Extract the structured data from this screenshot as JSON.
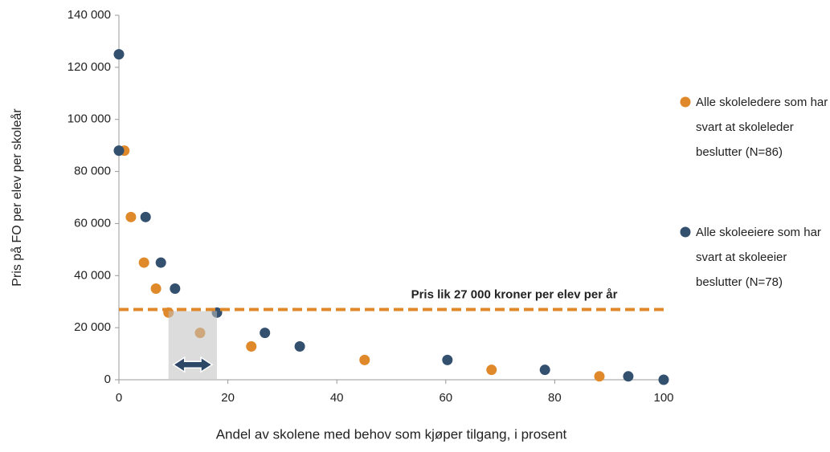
{
  "chart_data": {
    "type": "scatter",
    "y_label": "Pris på FO per elev per skoleår",
    "x_label": "Andel av skolene med behov som kjøper tilgang, i prosent",
    "xlim": [
      0,
      100
    ],
    "xticks": [
      0,
      20,
      40,
      60,
      80,
      100
    ],
    "ylim": [
      0,
      140000
    ],
    "yticks": [
      {
        "value": 0,
        "label": "0"
      },
      {
        "value": 20000,
        "label": "20 000"
      },
      {
        "value": 40000,
        "label": "40 000"
      },
      {
        "value": 60000,
        "label": "60 000"
      },
      {
        "value": 80000,
        "label": "80 000"
      },
      {
        "value": 100000,
        "label": "100 000"
      },
      {
        "value": 120000,
        "label": "120 000"
      },
      {
        "value": 140000,
        "label": "140 000"
      }
    ],
    "grid": false,
    "legend_position": "right",
    "reference_line": {
      "value": 27000,
      "label": "Pris lik 27 000 kroner per elev per år",
      "color": "#e0892a"
    },
    "series": [
      {
        "name": "Alle skoleledere som har svart at skoleleder beslutter (N=86)",
        "color": "#e0892a",
        "x": [
          1,
          2.2,
          4.6,
          6.8,
          9.1,
          14.9,
          24.3,
          45.1,
          68.4,
          88.2
        ],
        "values": [
          88000,
          62500,
          45000,
          35000,
          25800,
          18000,
          12800,
          7600,
          3800,
          1300
        ]
      },
      {
        "name": "Alle skoleeiere som har svart at skoleeier beslutter (N=78)",
        "color": "#34506f",
        "x": [
          0,
          0,
          4.9,
          7.7,
          10.3,
          18,
          26.8,
          33.2,
          60.3,
          78.2,
          93.5,
          100
        ],
        "values": [
          125000,
          88000,
          62500,
          45000,
          35000,
          25800,
          18000,
          12800,
          7600,
          3800,
          1300,
          0
        ]
      }
    ]
  }
}
